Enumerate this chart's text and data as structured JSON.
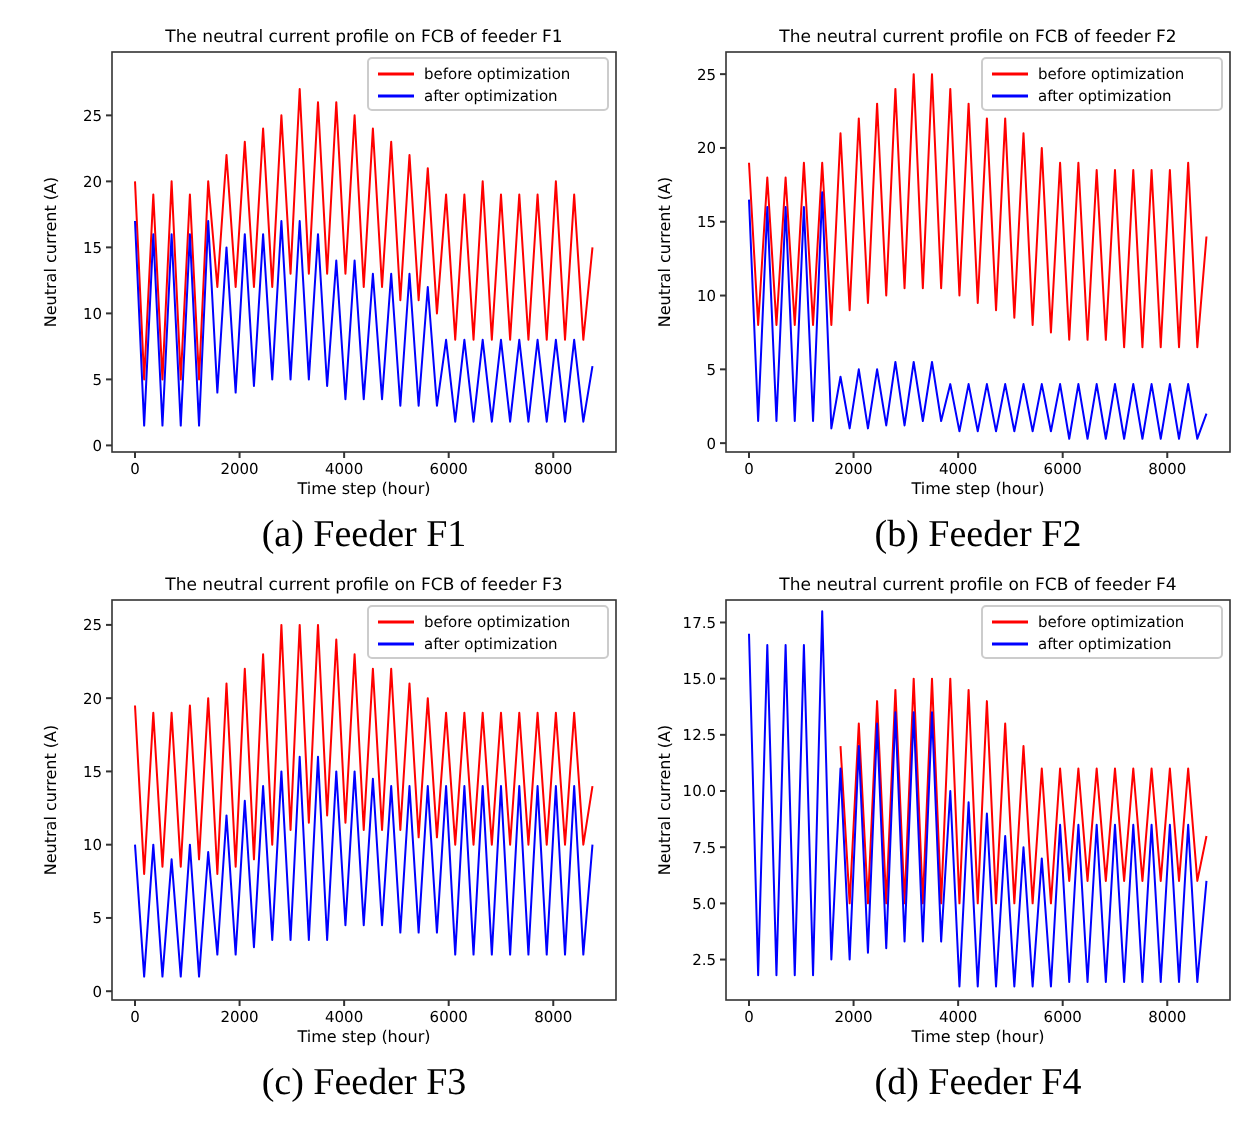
{
  "chart_data": [
    {
      "type": "line",
      "title": "The neutral current profile on FCB of feeder F1",
      "xlabel": "Time step (hour)",
      "ylabel": "Neutral current (A)",
      "annotations": [
        "(a) Feeder F1"
      ],
      "legend": "top right",
      "xlim": [
        -440,
        9200
      ],
      "ylim": [
        -0.5,
        29.8
      ],
      "xticks": [
        0,
        2000,
        4000,
        6000,
        8000
      ],
      "yticks": [
        0,
        5,
        10,
        15,
        20,
        25
      ],
      "x": [
        0,
        175,
        350,
        525,
        700,
        875,
        1050,
        1225,
        1400,
        1575,
        1750,
        1925,
        2100,
        2275,
        2450,
        2625,
        2800,
        2975,
        3150,
        3325,
        3500,
        3675,
        3850,
        4025,
        4200,
        4375,
        4550,
        4725,
        4900,
        5075,
        5250,
        5425,
        5600,
        5775,
        5950,
        6125,
        6300,
        6475,
        6650,
        6825,
        7000,
        7175,
        7350,
        7525,
        7700,
        7875,
        8050,
        8225,
        8400,
        8575,
        8750
      ],
      "series": [
        {
          "name": "before optimization",
          "color": "#ff0000",
          "values": [
            20,
            5,
            19,
            5,
            20,
            5,
            19,
            5,
            20,
            12,
            22,
            12,
            23,
            12,
            24,
            12,
            25,
            13,
            27,
            13,
            26,
            13,
            26,
            13,
            25,
            12,
            24,
            12,
            23,
            11,
            22,
            11,
            21,
            10,
            19,
            8,
            19,
            8,
            20,
            8,
            19,
            8,
            19,
            8,
            19,
            8,
            20,
            8,
            19,
            8,
            15
          ]
        },
        {
          "name": "after optimization",
          "color": "#0000ff",
          "values": [
            17,
            1.5,
            16,
            1.5,
            16,
            1.5,
            16,
            1.5,
            17,
            4,
            15,
            4,
            16,
            4.5,
            16,
            5,
            17,
            5,
            17,
            5,
            16,
            4.5,
            14,
            3.5,
            14,
            3.5,
            13,
            3.5,
            13,
            3,
            13,
            3,
            12,
            3,
            8,
            1.8,
            8,
            1.8,
            8,
            1.8,
            8,
            1.8,
            8,
            1.8,
            8,
            1.8,
            8,
            1.8,
            8,
            1.8,
            6
          ]
        }
      ]
    },
    {
      "type": "line",
      "title": "The neutral current profile on FCB of feeder F2",
      "xlabel": "Time step (hour)",
      "ylabel": "Neutral current (A)",
      "annotations": [
        "(b) Feeder F2"
      ],
      "legend": "top right",
      "xlim": [
        -440,
        9200
      ],
      "ylim": [
        -0.6,
        26.5
      ],
      "xticks": [
        0,
        2000,
        4000,
        6000,
        8000
      ],
      "yticks": [
        0,
        5,
        10,
        15,
        20,
        25
      ],
      "x": [
        0,
        175,
        350,
        525,
        700,
        875,
        1050,
        1225,
        1400,
        1575,
        1750,
        1925,
        2100,
        2275,
        2450,
        2625,
        2800,
        2975,
        3150,
        3325,
        3500,
        3675,
        3850,
        4025,
        4200,
        4375,
        4550,
        4725,
        4900,
        5075,
        5250,
        5425,
        5600,
        5775,
        5950,
        6125,
        6300,
        6475,
        6650,
        6825,
        7000,
        7175,
        7350,
        7525,
        7700,
        7875,
        8050,
        8225,
        8400,
        8575,
        8750
      ],
      "series": [
        {
          "name": "before optimization",
          "color": "#ff0000",
          "values": [
            19,
            8,
            18,
            8,
            18,
            8,
            19,
            8,
            19,
            8,
            21,
            9,
            22,
            9.5,
            23,
            10,
            24,
            10.5,
            25,
            10.5,
            25,
            10.5,
            24,
            10,
            23,
            9.5,
            22,
            9,
            22,
            8.5,
            21,
            8,
            20,
            7.5,
            19,
            7,
            19,
            7,
            18.5,
            7,
            18.5,
            6.5,
            18.5,
            6.5,
            18.5,
            6.5,
            18.5,
            6.5,
            19,
            6.5,
            14
          ]
        },
        {
          "name": "after optimization",
          "color": "#0000ff",
          "values": [
            16.5,
            1.5,
            16,
            1.5,
            16,
            1.5,
            16,
            1.5,
            17,
            1,
            4.5,
            1,
            5,
            1,
            5,
            1.2,
            5.5,
            1.2,
            5.5,
            1.5,
            5.5,
            1.5,
            4,
            0.8,
            4,
            0.8,
            4,
            0.8,
            4,
            0.8,
            4,
            0.8,
            4,
            0.8,
            4,
            0.3,
            4,
            0.3,
            4,
            0.3,
            4,
            0.3,
            4,
            0.3,
            4,
            0.3,
            4,
            0.3,
            4,
            0.3,
            2
          ]
        }
      ]
    },
    {
      "type": "line",
      "title": "The neutral current profile on FCB of feeder F3",
      "xlabel": "Time step (hour)",
      "ylabel": "Neutral current (A)",
      "annotations": [
        "(c) Feeder F3"
      ],
      "legend": "top right",
      "xlim": [
        -440,
        9200
      ],
      "ylim": [
        -0.6,
        26.7
      ],
      "xticks": [
        0,
        2000,
        4000,
        6000,
        8000
      ],
      "yticks": [
        0,
        5,
        10,
        15,
        20,
        25
      ],
      "x": [
        0,
        175,
        350,
        525,
        700,
        875,
        1050,
        1225,
        1400,
        1575,
        1750,
        1925,
        2100,
        2275,
        2450,
        2625,
        2800,
        2975,
        3150,
        3325,
        3500,
        3675,
        3850,
        4025,
        4200,
        4375,
        4550,
        4725,
        4900,
        5075,
        5250,
        5425,
        5600,
        5775,
        5950,
        6125,
        6300,
        6475,
        6650,
        6825,
        7000,
        7175,
        7350,
        7525,
        7700,
        7875,
        8050,
        8225,
        8400,
        8575,
        8750
      ],
      "series": [
        {
          "name": "before optimization",
          "color": "#ff0000",
          "values": [
            19.5,
            8,
            19,
            8.5,
            19,
            8.5,
            19.5,
            9,
            20,
            8,
            21,
            8.5,
            22,
            9,
            23,
            10,
            25,
            11,
            25,
            11.5,
            25,
            12,
            24,
            11.5,
            23,
            11,
            22,
            11,
            22,
            11,
            21,
            10.5,
            20,
            10.5,
            19,
            10,
            19,
            10,
            19,
            10,
            19,
            10,
            19,
            10,
            19,
            10,
            19,
            10,
            19,
            10,
            14
          ]
        },
        {
          "name": "after optimization",
          "color": "#0000ff",
          "values": [
            10,
            1,
            10,
            1,
            9,
            1,
            10,
            1,
            9.5,
            2.5,
            12,
            2.5,
            13,
            3,
            14,
            3.5,
            15,
            3.5,
            16,
            3.5,
            16,
            3.5,
            15,
            4.5,
            15,
            4.5,
            14.5,
            4.5,
            14,
            4,
            14,
            4,
            14,
            4,
            14,
            2.5,
            14,
            2.5,
            14,
            2.5,
            14,
            2.5,
            14,
            2.5,
            14,
            2.5,
            14,
            2.5,
            14,
            2.5,
            10
          ]
        }
      ]
    },
    {
      "type": "line",
      "title": "The neutral current profile on FCB of feeder F4",
      "xlabel": "Time step (hour)",
      "ylabel": "Neutral current (A)",
      "annotations": [
        "(d) Feeder F4"
      ],
      "legend": "top right",
      "xlim": [
        -440,
        9200
      ],
      "ylim": [
        0.7,
        18.5
      ],
      "xticks": [
        0,
        2000,
        4000,
        6000,
        8000
      ],
      "yticks": [
        {
          "value": 2.5,
          "label": "2.5"
        },
        {
          "value": 5,
          "label": "5.0"
        },
        {
          "value": 7.5,
          "label": "7.5"
        },
        {
          "value": 10,
          "label": "10.0"
        },
        {
          "value": 12.5,
          "label": "12.5"
        },
        {
          "value": 15,
          "label": "15.0"
        },
        {
          "value": 17.5,
          "label": "17.5"
        }
      ],
      "x": [
        0,
        175,
        350,
        525,
        700,
        875,
        1050,
        1225,
        1400,
        1575,
        1750,
        1925,
        2100,
        2275,
        2450,
        2625,
        2800,
        2975,
        3150,
        3325,
        3500,
        3675,
        3850,
        4025,
        4200,
        4375,
        4550,
        4725,
        4900,
        5075,
        5250,
        5425,
        5600,
        5775,
        5950,
        6125,
        6300,
        6475,
        6650,
        6825,
        7000,
        7175,
        7350,
        7525,
        7700,
        7875,
        8050,
        8225,
        8400,
        8575,
        8750
      ],
      "series": [
        {
          "name": "before optimization",
          "color": "#ff0000",
          "values": [
            null,
            null,
            null,
            null,
            null,
            null,
            null,
            null,
            null,
            null,
            12,
            5,
            13,
            5,
            14,
            5,
            14.5,
            5,
            15,
            5,
            15,
            5,
            15,
            5,
            14.5,
            5,
            14,
            5,
            13,
            5,
            12,
            5,
            11,
            5,
            11,
            6,
            11,
            6,
            11,
            6,
            11,
            6,
            11,
            6,
            11,
            6,
            11,
            6,
            11,
            6,
            8
          ]
        },
        {
          "name": "after optimization",
          "color": "#0000ff",
          "values": [
            17,
            1.8,
            16.5,
            1.8,
            16.5,
            1.8,
            16.5,
            1.8,
            18,
            2.5,
            11,
            2.5,
            12,
            2.8,
            13,
            3,
            13.5,
            3.3,
            13.5,
            3.3,
            13.5,
            3.3,
            10,
            1.3,
            9.5,
            1.3,
            9,
            1.3,
            8,
            1.3,
            7.5,
            1.3,
            7,
            1.3,
            8.5,
            1.5,
            8.5,
            1.5,
            8.5,
            1.5,
            8.5,
            1.5,
            8.5,
            1.5,
            8.5,
            1.5,
            8.5,
            1.5,
            8.5,
            1.5,
            6
          ]
        }
      ]
    }
  ]
}
